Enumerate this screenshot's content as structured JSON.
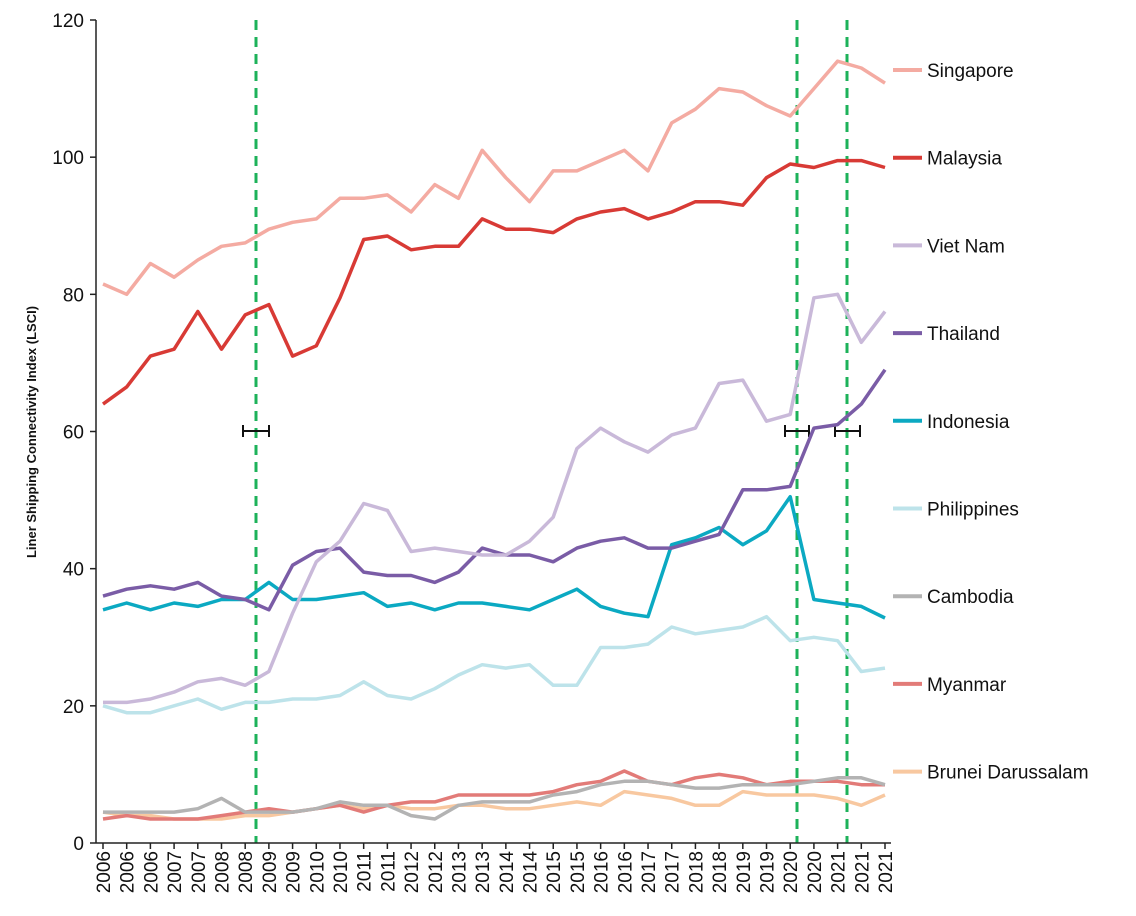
{
  "chart_data": {
    "type": "line",
    "y_label": "Liner Shipping Connectivity Index (LSCI)",
    "categories": [
      "2006",
      "2006",
      "2006",
      "2007",
      "2007",
      "2008",
      "2008",
      "2009",
      "2009",
      "2010",
      "2010",
      "2011",
      "2011",
      "2012",
      "2012",
      "2013",
      "2013",
      "2014",
      "2014",
      "2015",
      "2015",
      "2016",
      "2016",
      "2017",
      "2017",
      "2018",
      "2018",
      "2019",
      "2019",
      "2020",
      "2020",
      "2021",
      "2021",
      "2021"
    ],
    "ylim": [
      0,
      120
    ],
    "yticks": [
      0,
      20,
      40,
      60,
      80,
      100,
      120
    ],
    "grid": false,
    "series": [
      {
        "name": "Singapore",
        "color": "#f4aba2",
        "values": [
          81.5,
          80,
          84.5,
          82.5,
          85,
          87,
          87.5,
          89.5,
          90.5,
          91,
          94,
          94,
          94.5,
          92,
          96,
          94,
          101,
          97,
          93.5,
          98,
          98,
          99.5,
          101,
          98,
          105,
          107,
          110,
          109.5,
          107.5,
          106,
          110,
          114,
          113,
          110.8
        ]
      },
      {
        "name": "Malaysia",
        "color": "#d83a35",
        "values": [
          64,
          66.5,
          71,
          72,
          77.5,
          72,
          77,
          78.5,
          71,
          72.5,
          79.5,
          88,
          88.5,
          86.5,
          87,
          87,
          91,
          89.5,
          89.5,
          89,
          91,
          92,
          92.5,
          91,
          92,
          93.5,
          93.5,
          93,
          97,
          99,
          98.5,
          99.5,
          99.5,
          98.5
        ]
      },
      {
        "name": "Viet Nam",
        "color": "#c9b9d9",
        "values": [
          20.5,
          20.5,
          21,
          22,
          23.5,
          24,
          23,
          25,
          33.5,
          41,
          44,
          49.5,
          48.5,
          42.5,
          43,
          42.5,
          42,
          42,
          44,
          47.5,
          57.5,
          60.5,
          58.5,
          57,
          59.5,
          60.5,
          67,
          67.5,
          61.5,
          62.5,
          79.5,
          80,
          73,
          77.5
        ]
      },
      {
        "name": "Thailand",
        "color": "#7a5ca6",
        "values": [
          36,
          37,
          37.5,
          37,
          38,
          36,
          35.5,
          34,
          40.5,
          42.5,
          43,
          39.5,
          39,
          39,
          38,
          39.5,
          43,
          42,
          42,
          41,
          43,
          44,
          44.5,
          43,
          43,
          44,
          45,
          51.5,
          51.5,
          52,
          60.5,
          61,
          64,
          69
        ]
      },
      {
        "name": "Indonesia",
        "color": "#0ba9c2",
        "values": [
          34,
          35,
          34,
          35,
          34.5,
          35.5,
          35.5,
          38,
          35.5,
          35.5,
          36,
          36.5,
          34.5,
          35,
          34,
          35,
          35,
          34.5,
          34,
          35.5,
          37,
          34.5,
          33.5,
          33,
          43.5,
          44.5,
          46,
          43.5,
          45.5,
          50.5,
          35.5,
          35,
          34.5,
          32.8
        ]
      },
      {
        "name": "Philippines",
        "color": "#bde3ea",
        "values": [
          20,
          19,
          19,
          20,
          21,
          19.5,
          20.5,
          20.5,
          21,
          21,
          21.5,
          23.5,
          21.5,
          21,
          22.5,
          24.5,
          26,
          25.5,
          26,
          23,
          23,
          28.5,
          28.5,
          29,
          31.5,
          30.5,
          31,
          31.5,
          33,
          29.5,
          30,
          29.5,
          25,
          25.5
        ]
      },
      {
        "name": "Cambodia",
        "color": "#b3b3b3",
        "values": [
          4.5,
          4.5,
          4.5,
          4.5,
          5,
          6.5,
          4.5,
          4.5,
          4.5,
          5,
          6,
          5.5,
          5.5,
          4,
          3.5,
          5.5,
          6,
          6,
          6,
          7,
          7.5,
          8.5,
          9,
          9,
          8.5,
          8,
          8,
          8.5,
          8.5,
          8.5,
          9,
          9.5,
          9.5,
          8.5
        ]
      },
      {
        "name": "Myanmar",
        "color": "#e27b78",
        "values": [
          3.5,
          4,
          3.5,
          3.5,
          3.5,
          4,
          4.5,
          5,
          4.5,
          5,
          5.5,
          4.5,
          5.5,
          6,
          6,
          7,
          7,
          7,
          7,
          7.5,
          8.5,
          9,
          10.5,
          9,
          8.5,
          9.5,
          10,
          9.5,
          8.5,
          9,
          9,
          9,
          8.5,
          8.5
        ]
      },
      {
        "name": "Brunei Darussalam",
        "color": "#f8c8a0",
        "values": [
          4.5,
          4,
          4,
          3.5,
          3.5,
          3.5,
          4,
          4,
          4.5,
          5,
          5.5,
          5,
          5.5,
          5,
          5,
          5.5,
          5.5,
          5,
          5,
          5.5,
          6,
          5.5,
          7.5,
          7,
          6.5,
          5.5,
          5.5,
          7.5,
          7,
          7,
          7,
          6.5,
          5.5,
          7
        ]
      }
    ]
  }
}
